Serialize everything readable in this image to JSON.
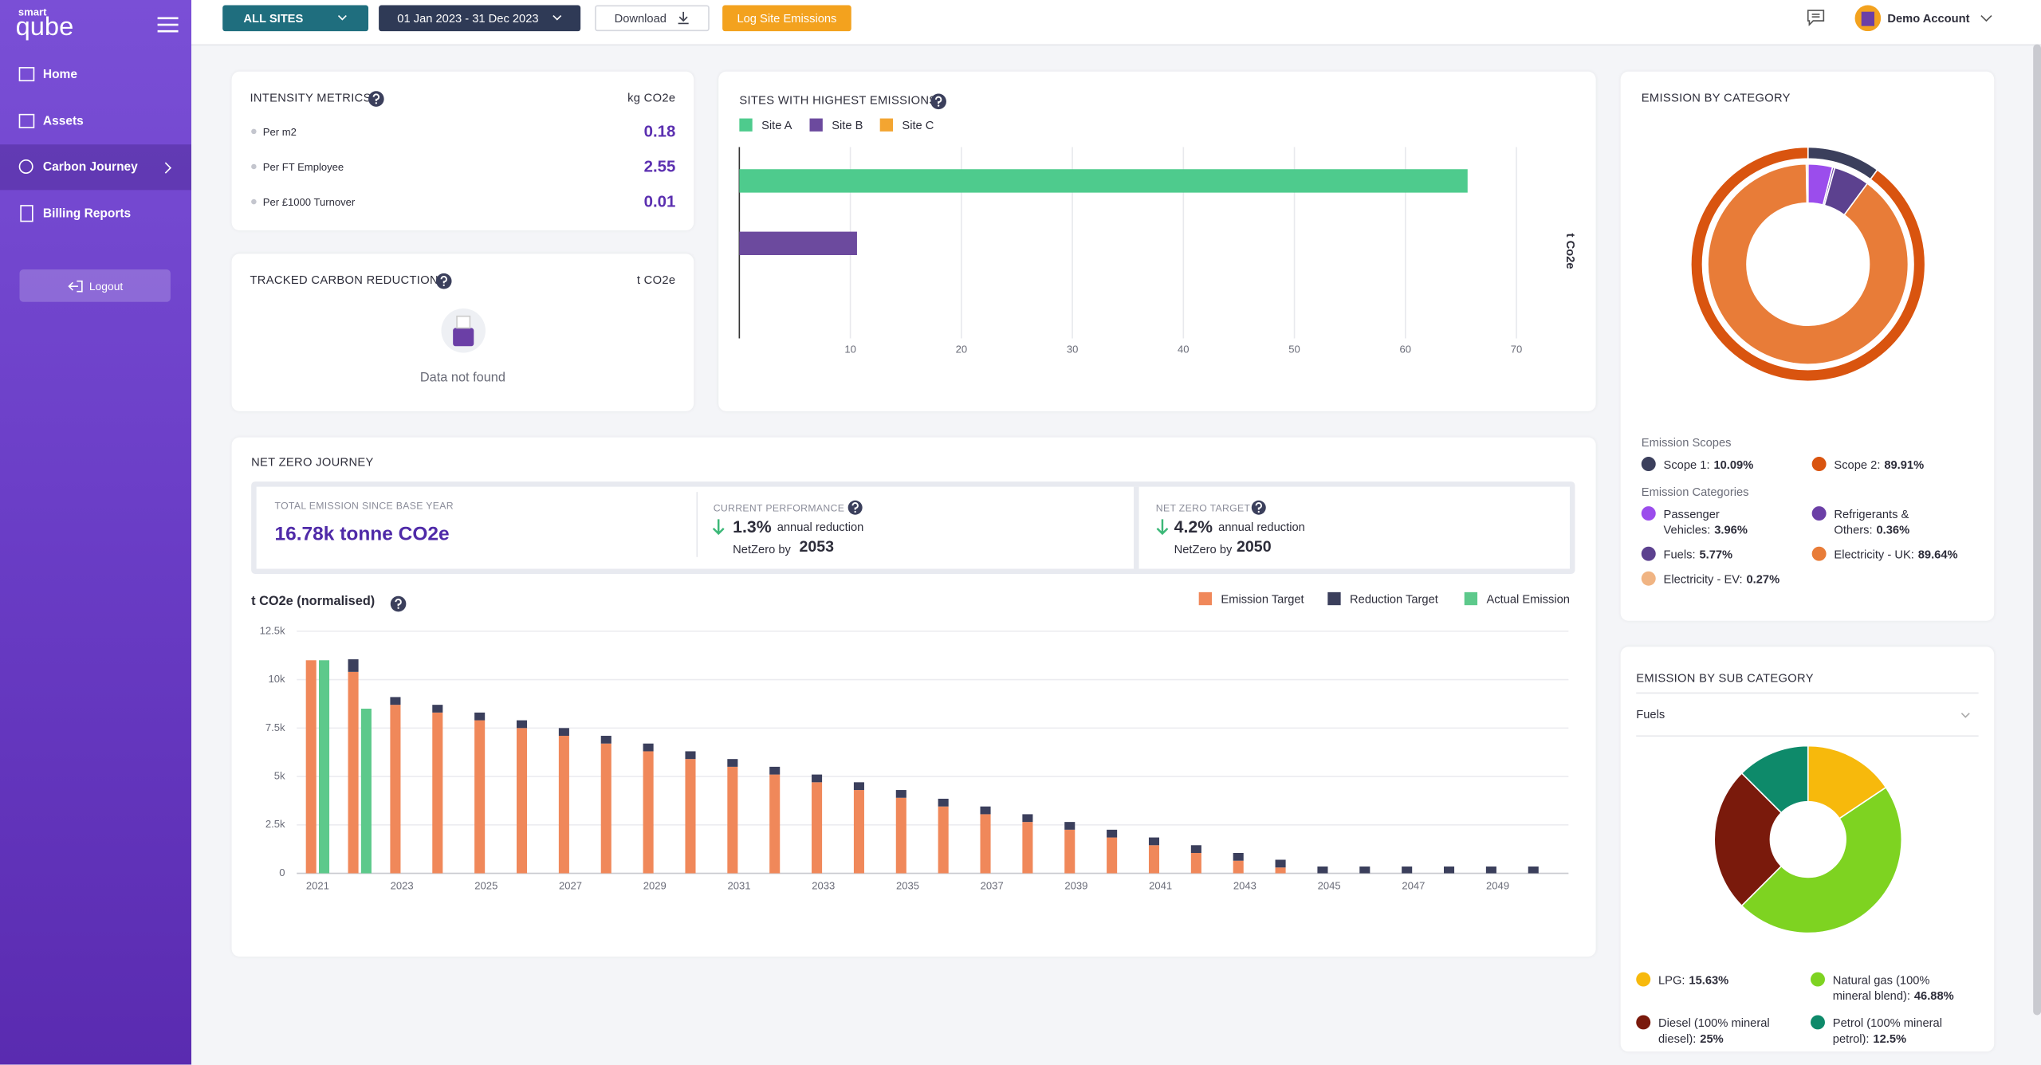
{
  "sidebar": {
    "logo_top": "smart",
    "logo_main": "qube",
    "nav": [
      "Home",
      "Assets",
      "Carbon Journey",
      "Billing Reports"
    ],
    "logout": "Logout"
  },
  "topbar": {
    "site_filter": "ALL SITES",
    "date_range": "01 Jan 2023 - 31 Dec 2023",
    "download": "Download",
    "log_button": "Log Site Emissions",
    "account": "Demo Account"
  },
  "intensity_metrics": {
    "title": "INTENSITY METRICS",
    "unit": "kg CO2e",
    "rows": [
      {
        "label": "Per m2",
        "value": "0.18"
      },
      {
        "label": "Per FT Employee",
        "value": "2.55"
      },
      {
        "label": "Per £1000 Turnover",
        "value": "0.01"
      }
    ]
  },
  "tracked_reduction": {
    "title": "TRACKED CARBON REDUCTION",
    "unit": "t CO2e",
    "empty_message": "Data not found"
  },
  "net_zero": {
    "title": "NET ZERO JOURNEY",
    "total": {
      "label": "TOTAL EMISSION SINCE BASE YEAR",
      "value": "16.78k tonne CO2e"
    },
    "current": {
      "label": "CURRENT PERFORMANCE",
      "rate": "1.3%",
      "rate_text": "annual reduction",
      "netzero_text": "NetZero by",
      "netzero_year": "2053"
    },
    "target": {
      "label": "NET ZERO TARGET",
      "rate": "4.2%",
      "rate_text": "annual reduction",
      "netzero_text": "NetZero by",
      "netzero_year": "2050"
    }
  },
  "chart_data": [
    {
      "type": "bar",
      "orientation": "horizontal",
      "title": "SITES WITH HIGHEST EMISSIONS",
      "x_label": "t Co2e",
      "series": [
        {
          "name": "Site A",
          "color": "#4ecb8d",
          "values": [
            65.6
          ]
        },
        {
          "name": "Site B",
          "color": "#6c4a9e",
          "values": [
            10.6
          ]
        },
        {
          "name": "Site C",
          "color": "#f3a531",
          "values": [
            0
          ]
        }
      ],
      "xlim": [
        0,
        70
      ],
      "xticks": [
        10,
        20,
        30,
        40,
        50,
        60,
        70
      ],
      "grid": true
    },
    {
      "type": "donut",
      "title": "EMISSION BY CATEGORY",
      "rings": [
        {
          "name": "Emission Scopes",
          "categories": [
            "Scope 1:",
            "Scope 2:"
          ],
          "values": [
            10.09,
            89.91
          ],
          "value_labels": [
            "10.09%",
            "89.91%"
          ],
          "colors": [
            "#3b3f5c",
            "#d9540f"
          ]
        },
        {
          "name": "Emission Categories",
          "categories": [
            "Passenger Vehicles:",
            "Refrigerants & Others:",
            "Fuels:",
            "Electricity - UK:",
            "Electricity - EV:"
          ],
          "values": [
            3.96,
            0.36,
            5.77,
            89.64,
            0.27
          ],
          "value_labels": [
            "3.96%",
            "0.36%",
            "5.77%",
            "89.64%",
            "0.27%"
          ],
          "colors": [
            "#9b4dec",
            "#6b3fa6",
            "#5c418f",
            "#e87c38",
            "#f0b483"
          ]
        }
      ]
    },
    {
      "type": "bar",
      "y_label": "t CO2e (normalised)",
      "categories": [
        "2021",
        null,
        "2023",
        null,
        "2025",
        null,
        "2027",
        null,
        "2029",
        null,
        "2031",
        null,
        "2033",
        null,
        "2035",
        null,
        "2037",
        null,
        "2039",
        null,
        "2041",
        null,
        "2043",
        null,
        "2045",
        null,
        "2047",
        null,
        "2049",
        null
      ],
      "series": [
        {
          "name": "Emission Target",
          "color": "#f0885a",
          "stack": "target",
          "values": [
            11000,
            10400,
            8700,
            8300,
            7900,
            7500,
            7100,
            6700,
            6300,
            5900,
            5500,
            5100,
            4700,
            4300,
            3900,
            3450,
            3050,
            2650,
            2250,
            1850,
            1450,
            1050,
            650,
            300,
            0,
            0,
            0,
            0,
            0,
            0
          ]
        },
        {
          "name": "Reduction Target",
          "color": "#3b3f5c",
          "stack": "target",
          "values": [
            0,
            650,
            400,
            400,
            400,
            400,
            400,
            400,
            400,
            400,
            400,
            400,
            400,
            400,
            400,
            400,
            400,
            400,
            400,
            400,
            400,
            400,
            400,
            400,
            350,
            350,
            350,
            350,
            350,
            350
          ]
        },
        {
          "name": "Actual Emission",
          "color": "#5dc98b",
          "stack": "actual",
          "values": [
            11000,
            8500,
            null,
            null,
            null,
            null,
            null,
            null,
            null,
            null,
            null,
            null,
            null,
            null,
            null,
            null,
            null,
            null,
            null,
            null,
            null,
            null,
            null,
            null,
            null,
            null,
            null,
            null,
            null,
            null
          ]
        }
      ],
      "ylim": [
        0,
        12500
      ],
      "yticks": [
        0,
        {
          "value": 2500,
          "label": "2.5k"
        },
        {
          "value": 5000,
          "label": "5k"
        },
        {
          "value": 7500,
          "label": "7.5k"
        },
        {
          "value": 10000,
          "label": "10k"
        },
        {
          "value": 12500,
          "label": "12.5k"
        }
      ],
      "grid": true,
      "legend": "top-right"
    },
    {
      "type": "donut",
      "title": "EMISSION BY SUB CATEGORY",
      "filter": "Fuels",
      "categories": [
        "LPG:",
        "Natural gas (100% mineral blend):",
        "Diesel (100% mineral diesel):",
        "Petrol (100% mineral petrol):"
      ],
      "values": [
        15.63,
        46.88,
        25,
        12.5
      ],
      "value_labels": [
        "15.63%",
        "46.88%",
        "25%",
        "12.5%"
      ],
      "colors": [
        "#f7b90c",
        "#7ed321",
        "#7a1a0c",
        "#0e8a6a"
      ]
    }
  ]
}
